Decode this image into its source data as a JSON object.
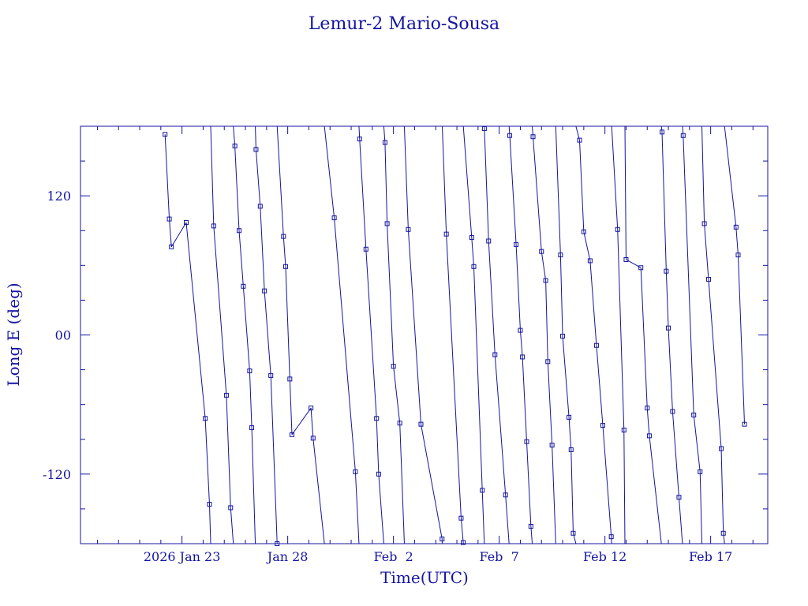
{
  "colors": {
    "ink": "#1414a0",
    "background": "#ffffff"
  },
  "chart_data": {
    "type": "line",
    "title": "Lemur-2 Mario-Sousa",
    "xlabel": "Time(UTC)",
    "ylabel": "Long E (deg)",
    "x_units": "days since 2026-01-01 00:00 UTC",
    "xlim": [
      18.2,
      50.7
    ],
    "ylim": [
      -180,
      180
    ],
    "x_ticklabels": [
      {
        "x": 23,
        "label": "2026 Jan 23"
      },
      {
        "x": 28,
        "label": "Jan 28"
      },
      {
        "x": 33,
        "label": "Feb  2"
      },
      {
        "x": 38,
        "label": "Feb  7"
      },
      {
        "x": 43,
        "label": "Feb 12"
      },
      {
        "x": 48,
        "label": "Feb 17"
      }
    ],
    "y_ticklabels": [
      {
        "y": 120,
        "label": "120"
      },
      {
        "y": 0,
        "label": "00"
      },
      {
        "y": -120,
        "label": "-120"
      }
    ],
    "x_minor_step": 1,
    "y_minor_step": 30,
    "series": [
      {
        "name": "Lemur-2 Mario-Sousa",
        "marker": "square",
        "points": [
          [
            22.2,
            173
          ],
          [
            22.4,
            100
          ],
          [
            22.5,
            76
          ],
          [
            23.2,
            97
          ],
          [
            24.1,
            -72
          ],
          [
            24.3,
            -146
          ],
          [
            24.5,
            94
          ],
          [
            25.1,
            -52
          ],
          [
            25.3,
            -149
          ],
          [
            25.5,
            163
          ],
          [
            25.7,
            90
          ],
          [
            25.9,
            42
          ],
          [
            26.2,
            -31
          ],
          [
            26.3,
            -80
          ],
          [
            26.5,
            160
          ],
          [
            26.7,
            111
          ],
          [
            26.9,
            38
          ],
          [
            27.2,
            -35
          ],
          [
            27.5,
            -180
          ],
          [
            27.8,
            85
          ],
          [
            27.9,
            59
          ],
          [
            28.1,
            -38
          ],
          [
            28.2,
            -86
          ],
          [
            29.1,
            -63
          ],
          [
            29.2,
            -89
          ],
          [
            30.2,
            101
          ],
          [
            31.2,
            -118
          ],
          [
            31.4,
            169
          ],
          [
            31.7,
            74
          ],
          [
            32.2,
            -72
          ],
          [
            32.3,
            -120
          ],
          [
            32.6,
            166
          ],
          [
            32.7,
            96
          ],
          [
            33.0,
            -27
          ],
          [
            33.3,
            -76
          ],
          [
            33.7,
            91
          ],
          [
            34.3,
            -77
          ],
          [
            35.3,
            -176
          ],
          [
            35.5,
            87
          ],
          [
            36.2,
            -158
          ],
          [
            36.3,
            -179
          ],
          [
            36.7,
            84
          ],
          [
            36.8,
            59
          ],
          [
            37.2,
            -134
          ],
          [
            37.3,
            178
          ],
          [
            37.5,
            81
          ],
          [
            37.8,
            -17
          ],
          [
            38.3,
            -138
          ],
          [
            38.5,
            172
          ],
          [
            38.8,
            78
          ],
          [
            39.0,
            4
          ],
          [
            39.1,
            -19
          ],
          [
            39.3,
            -92
          ],
          [
            39.5,
            -165
          ],
          [
            39.6,
            171
          ],
          [
            40.0,
            72
          ],
          [
            40.2,
            47
          ],
          [
            40.3,
            -23
          ],
          [
            40.5,
            -95
          ],
          [
            40.9,
            69
          ],
          [
            41.0,
            -1
          ],
          [
            41.3,
            -71
          ],
          [
            41.4,
            -99
          ],
          [
            41.5,
            -171
          ],
          [
            41.8,
            168
          ],
          [
            42.0,
            89
          ],
          [
            42.3,
            64
          ],
          [
            42.6,
            -9
          ],
          [
            42.9,
            -78
          ],
          [
            43.3,
            -174
          ],
          [
            43.6,
            91
          ],
          [
            43.9,
            -82
          ],
          [
            44.0,
            65
          ],
          [
            44.7,
            58
          ],
          [
            45.0,
            -63
          ],
          [
            45.1,
            -87
          ],
          [
            45.7,
            175
          ],
          [
            45.9,
            55
          ],
          [
            46.0,
            6
          ],
          [
            46.2,
            -66
          ],
          [
            46.5,
            -140
          ],
          [
            46.7,
            172
          ],
          [
            47.2,
            -69
          ],
          [
            47.5,
            -118
          ],
          [
            47.7,
            96
          ],
          [
            47.9,
            48
          ],
          [
            48.5,
            -98
          ],
          [
            48.6,
            -171
          ],
          [
            49.2,
            93
          ],
          [
            49.3,
            69
          ],
          [
            49.6,
            -77
          ]
        ]
      }
    ]
  }
}
